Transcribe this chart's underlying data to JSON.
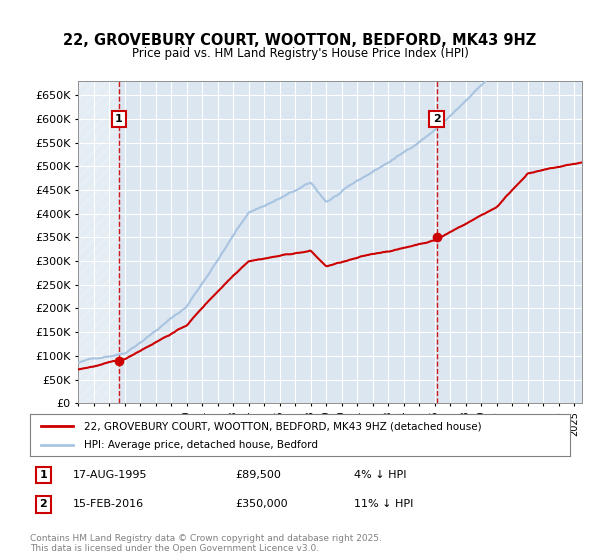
{
  "title": "22, GROVEBURY COURT, WOOTTON, BEDFORD, MK43 9HZ",
  "subtitle": "Price paid vs. HM Land Registry's House Price Index (HPI)",
  "ylim": [
    0,
    680000
  ],
  "yticks": [
    0,
    50000,
    100000,
    150000,
    200000,
    250000,
    300000,
    350000,
    400000,
    450000,
    500000,
    550000,
    600000,
    650000
  ],
  "background_color": "#dce6f1",
  "hpi_color": "#a8c4e0",
  "price_color": "#cc0000",
  "sale1_date": 1995.63,
  "sale1_price": 89500,
  "sale2_date": 2016.12,
  "sale2_price": 350000,
  "legend_label1": "22, GROVEBURY COURT, WOOTTON, BEDFORD, MK43 9HZ (detached house)",
  "legend_label2": "HPI: Average price, detached house, Bedford",
  "annotation1_date": "17-AUG-1995",
  "annotation1_price": "£89,500",
  "annotation1_pct": "4% ↓ HPI",
  "annotation2_date": "15-FEB-2016",
  "annotation2_price": "£350,000",
  "annotation2_pct": "11% ↓ HPI",
  "footnote": "Contains HM Land Registry data © Crown copyright and database right 2025.\nThis data is licensed under the Open Government Licence v3.0.",
  "xmin": 1993,
  "xmax": 2025.5
}
